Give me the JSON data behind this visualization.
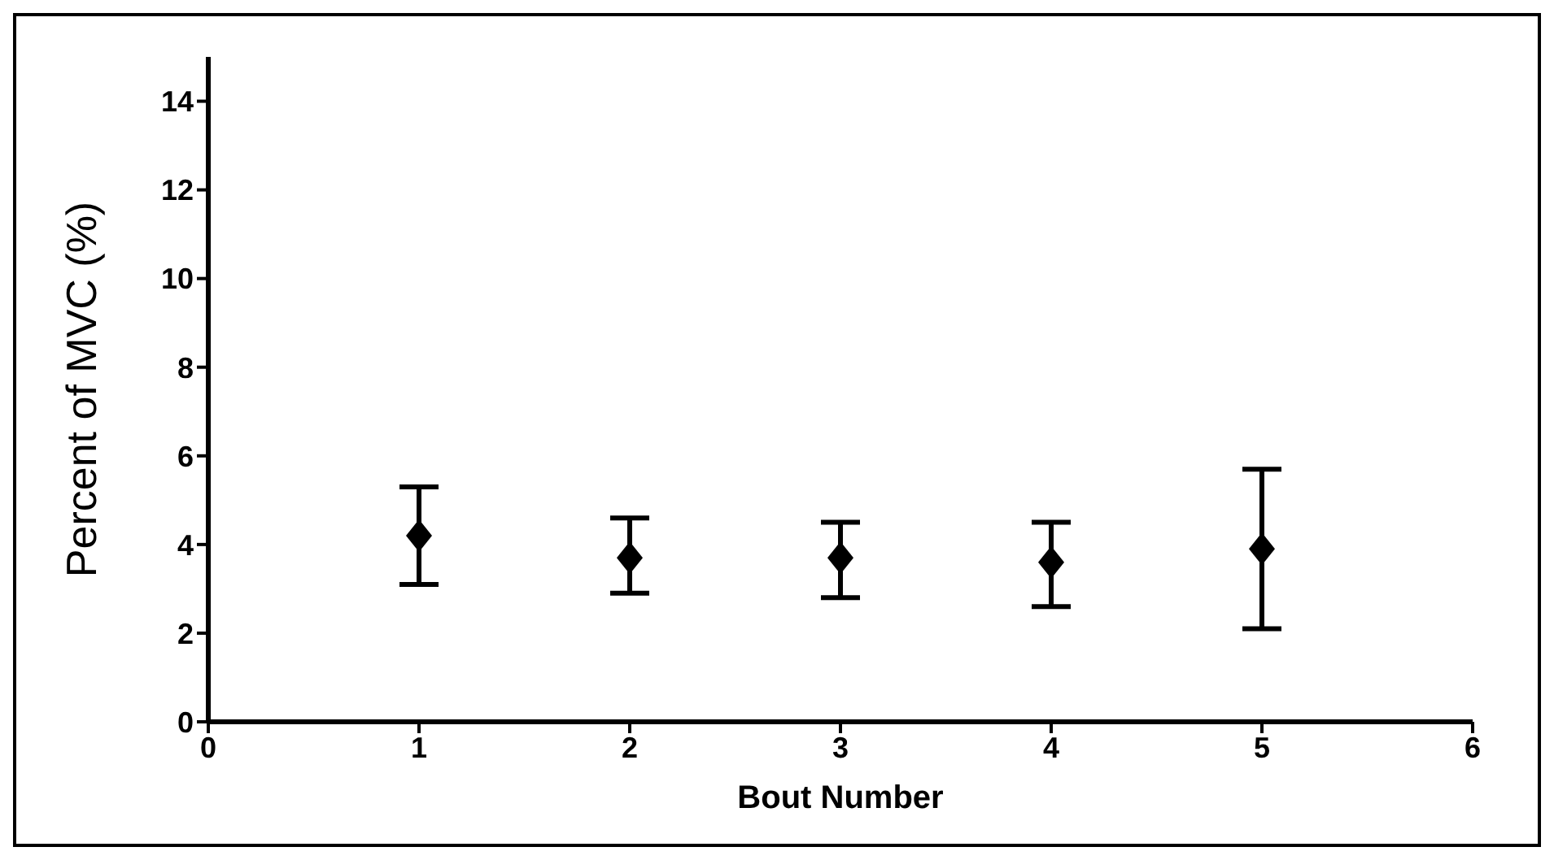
{
  "chart_data": {
    "type": "scatter",
    "xlabel": "Bout Number",
    "ylabel": "Percent of MVC (%)",
    "x": [
      1,
      2,
      3,
      4,
      5
    ],
    "values": [
      4.2,
      3.7,
      3.7,
      3.6,
      3.9
    ],
    "errors": [
      [
        3.1,
        5.3
      ],
      [
        2.9,
        4.6
      ],
      [
        2.8,
        4.5
      ],
      [
        2.6,
        4.5
      ],
      [
        2.1,
        5.7
      ]
    ],
    "color": "#000000",
    "marker": "diamond",
    "xlim": [
      0,
      6
    ],
    "xticks": [
      0,
      1,
      2,
      3,
      4,
      5,
      6
    ],
    "ylim": [
      0,
      15
    ],
    "yticks": [
      0,
      2,
      4,
      6,
      8,
      10,
      12,
      14
    ]
  }
}
